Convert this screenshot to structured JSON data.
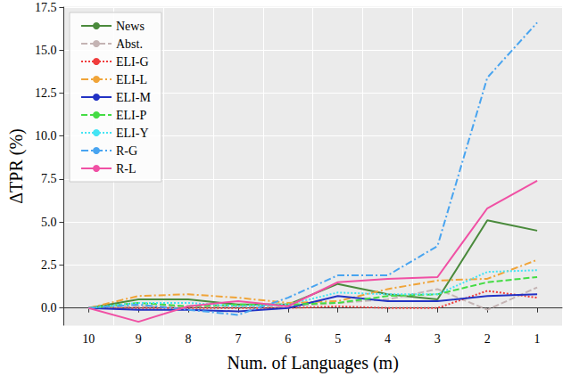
{
  "chart_data": {
    "type": "line",
    "x_label": "Num. of Languages (m)",
    "y_label": "ΔTPR (%)",
    "categories": [
      "10",
      "9",
      "8",
      "7",
      "6",
      "5",
      "4",
      "3",
      "2",
      "1"
    ],
    "ylim": [
      -1.0,
      17.5
    ],
    "yticks": [
      {
        "value": 0,
        "label": "0.0"
      },
      {
        "value": 2.5,
        "label": "2.5"
      },
      {
        "value": 5,
        "label": "5.0"
      },
      {
        "value": 7.5,
        "label": "7.5"
      },
      {
        "value": 10,
        "label": "10.0"
      },
      {
        "value": 12.5,
        "label": "12.5"
      },
      {
        "value": 15,
        "label": "15.0"
      },
      {
        "value": 17.5,
        "label": "17.5"
      }
    ],
    "grid": true,
    "legend": "upper left",
    "series": [
      {
        "name": "News",
        "color": "#4a8a3c",
        "line_style": "solid",
        "values": [
          0,
          0.5,
          0.5,
          0.2,
          0.2,
          1.4,
          0.8,
          0.5,
          5.1,
          4.5
        ]
      },
      {
        "name": "Abst.",
        "color": "#c4b4b4",
        "line_style": "dashed",
        "values": [
          0,
          0.1,
          0.1,
          0.1,
          0.1,
          0.3,
          0.5,
          1.1,
          -0.1,
          1.2
        ]
      },
      {
        "name": "ELI-G",
        "color": "#f03c3c",
        "line_style": "dotted",
        "values": [
          0,
          0,
          0,
          0,
          0,
          0.1,
          0,
          0,
          1.0,
          0.6
        ]
      },
      {
        "name": "ELI-L",
        "color": "#f0a438",
        "line_style": "dashdot",
        "values": [
          0,
          0.7,
          0.8,
          0.6,
          0.3,
          0.4,
          1.1,
          1.6,
          1.7,
          2.8
        ]
      },
      {
        "name": "ELI-M",
        "color": "#2232c4",
        "line_style": "solid",
        "values": [
          0,
          -0.1,
          -0.1,
          -0.2,
          0,
          0.7,
          0.4,
          0.4,
          0.7,
          0.8
        ]
      },
      {
        "name": "ELI-P",
        "color": "#44dc44",
        "line_style": "dashed",
        "values": [
          0,
          0.3,
          0.1,
          0.2,
          0.2,
          0.3,
          0.7,
          0.8,
          1.5,
          1.8
        ]
      },
      {
        "name": "ELI-Y",
        "color": "#44e4f4",
        "line_style": "dotted",
        "values": [
          0,
          0.3,
          0.3,
          0.1,
          0.2,
          0.9,
          0.8,
          0.8,
          2.1,
          2.2
        ]
      },
      {
        "name": "R-G",
        "color": "#48a4f0",
        "line_style": "dashdot",
        "values": [
          0,
          0.2,
          -0.1,
          -0.4,
          0.6,
          1.9,
          1.9,
          3.6,
          13.4,
          16.6
        ]
      },
      {
        "name": "R-L",
        "color": "#f050a4",
        "line_style": "solid",
        "values": [
          0,
          -0.8,
          0.1,
          0.4,
          0.1,
          1.5,
          1.7,
          1.8,
          5.8,
          7.4
        ]
      }
    ]
  }
}
